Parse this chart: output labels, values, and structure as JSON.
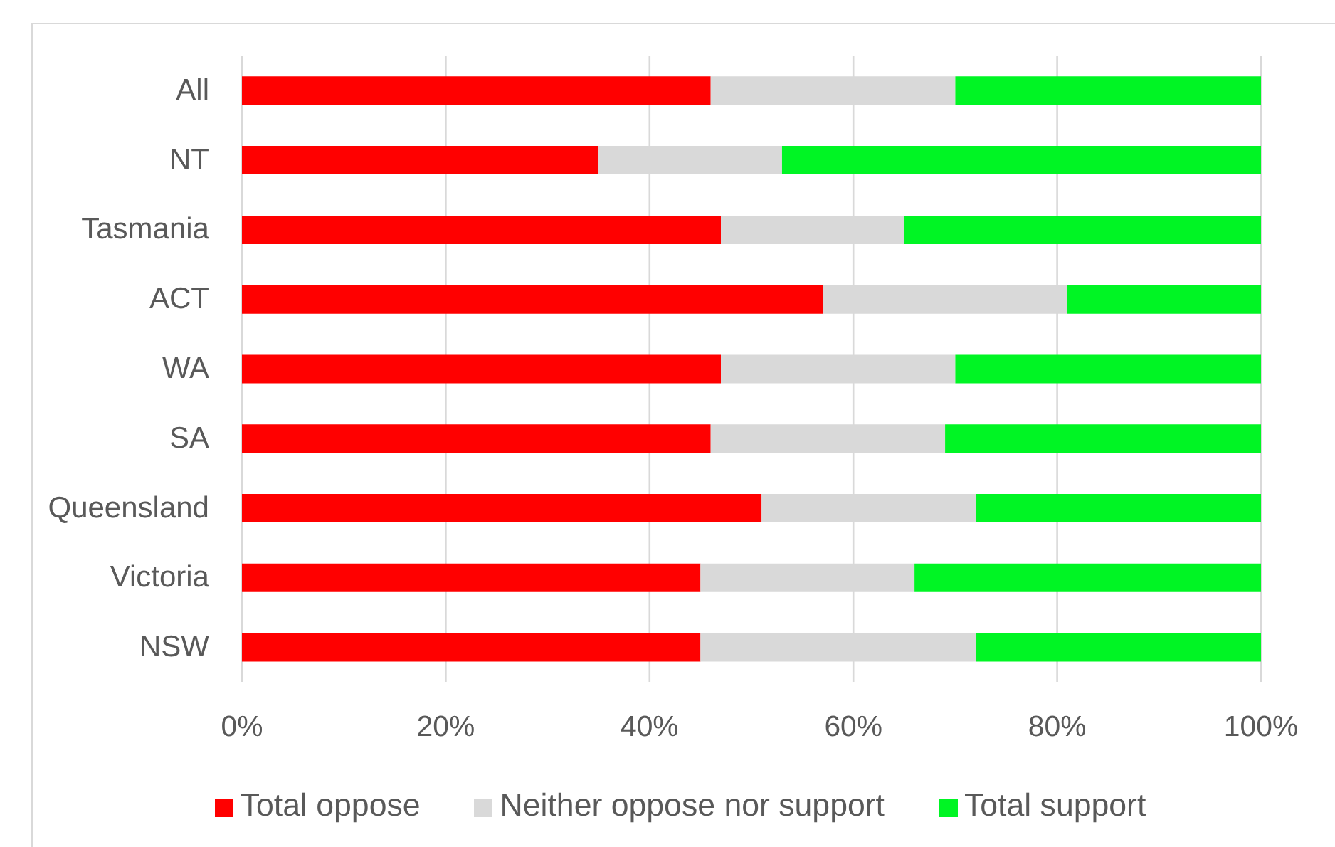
{
  "chart_data": {
    "type": "bar",
    "orientation": "horizontal",
    "stacked": true,
    "categories": [
      "All",
      "NT",
      "Tasmania",
      "ACT",
      "WA",
      "SA",
      "Queensland",
      "Victoria",
      "NSW"
    ],
    "series": [
      {
        "name": "Total oppose",
        "color": "#ff0000",
        "values": [
          46,
          35,
          47,
          57,
          47,
          46,
          51,
          45,
          45
        ]
      },
      {
        "name": "Neither oppose nor support",
        "color": "#d9d9d9",
        "values": [
          24,
          18,
          18,
          24,
          23,
          23,
          21,
          21,
          27
        ]
      },
      {
        "name": "Total support",
        "color": "#00f524",
        "values": [
          30,
          47,
          35,
          19,
          30,
          31,
          28,
          34,
          28
        ]
      }
    ],
    "xlim": [
      0,
      100
    ],
    "xticks": [
      {
        "value": 0,
        "label": "0%"
      },
      {
        "value": 20,
        "label": "20%"
      },
      {
        "value": 40,
        "label": "40%"
      },
      {
        "value": 60,
        "label": "60%"
      },
      {
        "value": 80,
        "label": "80%"
      },
      {
        "value": 100,
        "label": "100%"
      }
    ],
    "grid": "x",
    "legend": "bottom"
  }
}
